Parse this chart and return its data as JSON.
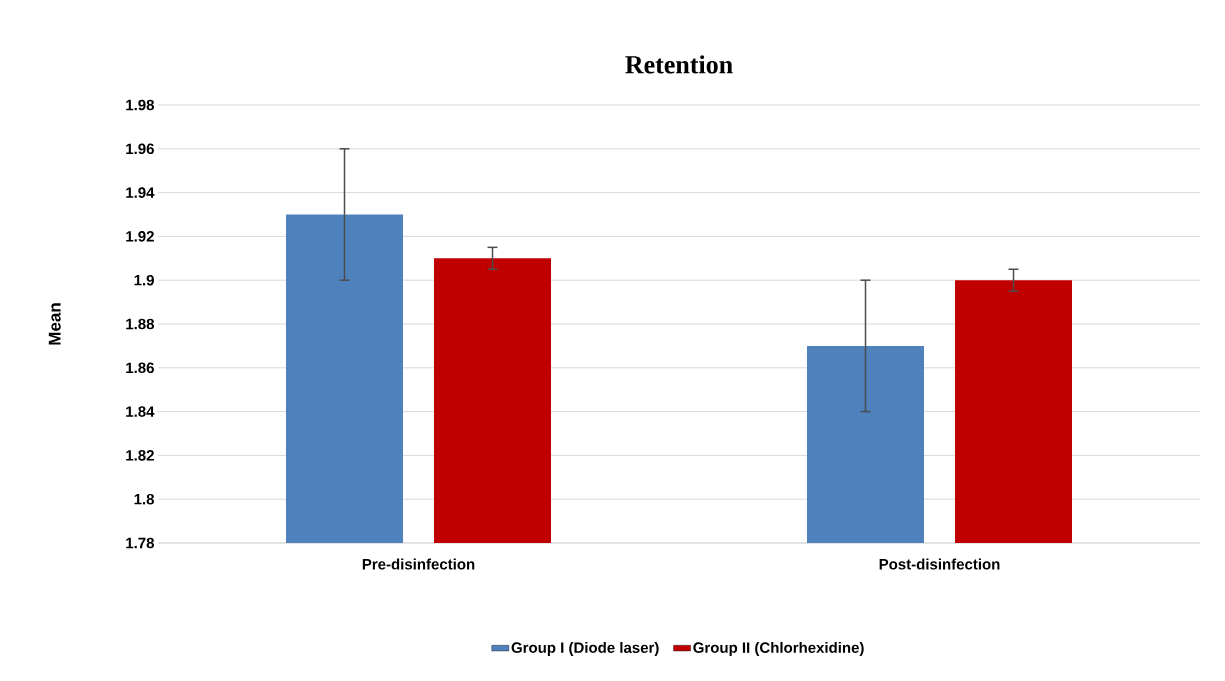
{
  "chart_data": {
    "type": "bar",
    "title": "Retention",
    "ylabel": "Mean",
    "categories": [
      "Pre-disinfection",
      "Post-disinfection"
    ],
    "series": [
      {
        "name": "Group I (Diode laser)",
        "color": "#4f81bd",
        "values": [
          1.93,
          1.87
        ],
        "errors": [
          0.03,
          0.03
        ]
      },
      {
        "name": "Group II (Chlorhexidine)",
        "color": "#c00000",
        "values": [
          1.91,
          1.9
        ],
        "errors": [
          0.005,
          0.005
        ]
      }
    ],
    "ylim": [
      1.78,
      1.98
    ],
    "yticks": [
      1.78,
      1.8,
      1.82,
      1.84,
      1.86,
      1.88,
      1.9,
      1.92,
      1.94,
      1.96,
      1.98
    ],
    "grid": "y",
    "legend": "bottom"
  }
}
